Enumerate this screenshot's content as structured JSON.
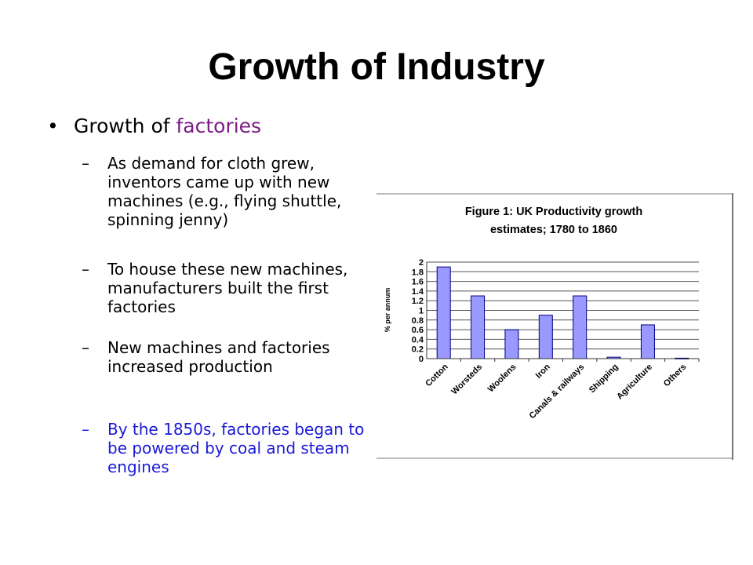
{
  "slide": {
    "title": "Growth of Industry",
    "bullet": {
      "prefix": "Growth of ",
      "highlight": "factories"
    },
    "sub_bullets": [
      {
        "text": "As demand for cloth grew, inventors came up with new machines (e.g., flying shuttle, spinning jenny)"
      },
      {
        "text": "To house these new machines, manufacturers built the first factories"
      },
      {
        "text": "New machines and factories increased production"
      },
      {
        "text": "By the 1850s, factories began to be powered by coal and steam engines"
      }
    ],
    "colors": {
      "highlight": "#7B1C86",
      "last_bullet": "#1a1ad6"
    }
  },
  "chart_data": {
    "type": "bar",
    "title": "Figure 1: UK Productivity growth estimates; 1780 to 1860",
    "title_lines": [
      "Figure 1: UK Productivity growth",
      "estimates; 1780 to 1860"
    ],
    "ylabel": "% per annum",
    "xlabel": "",
    "categories": [
      "Cotton",
      "Worsteds",
      "Woolens",
      "Iron",
      "Canals & railways",
      "Shipping",
      "Agriculture",
      "Others"
    ],
    "values": [
      1.9,
      1.3,
      0.6,
      0.9,
      1.3,
      0.03,
      0.7,
      0.01
    ],
    "ylim": [
      0,
      2
    ],
    "yticks": [
      "0",
      "0.2",
      "0.4",
      "0.6",
      "0.8",
      "1",
      "1.2",
      "1.4",
      "1.6",
      "1.8",
      "2"
    ],
    "grid": true,
    "bar_color": "#9999ff",
    "bar_edge": "#000080"
  }
}
